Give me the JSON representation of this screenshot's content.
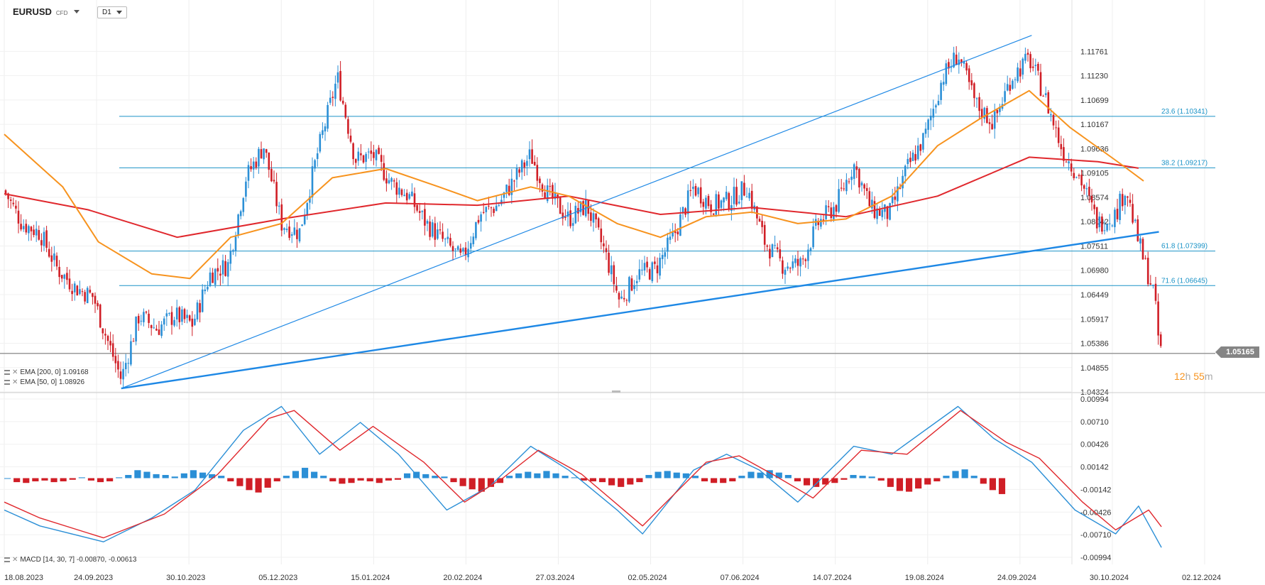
{
  "header": {
    "symbol": "EURUSD",
    "instrument_type": "CFD",
    "timeframe": "D1"
  },
  "indicators": {
    "ema200_label": "EMA [200, 0] 1.09168",
    "ema50_label": "EMA [50, 0] 1.08926",
    "macd_label": "MACD [14, 30, 7] -0.00870, -0.00613"
  },
  "last_price": "1.05165",
  "timer": {
    "hours": "12",
    "h_unit": "h",
    "minutes": "55",
    "m_unit": "m"
  },
  "colors": {
    "bull": "#2b8fd6",
    "bear": "#d01e26",
    "ema200": "#e0282d",
    "ema50": "#f7931e",
    "fib": "#1b93c7",
    "trend": "#1e88e5",
    "macd_line": "#2b8fd6",
    "signal_line": "#e0282d"
  },
  "chart_data": [
    {
      "type": "candlestick",
      "title": "EURUSD D1",
      "ylim": [
        1.04324,
        1.12293
      ],
      "y_ticks": [
        "1.11761",
        "1.11230",
        "1.10699",
        "1.10167",
        "1.09636",
        "1.09105",
        "1.08574",
        "1.08042",
        "1.07511",
        "1.06980",
        "1.06449",
        "1.05917",
        "1.05386",
        "1.04855",
        "1.04324"
      ],
      "x_ticks": [
        "18.08.2023",
        "24.09.2023",
        "30.10.2023",
        "05.12.2023",
        "15.01.2024",
        "20.02.2024",
        "27.03.2024",
        "02.05.2024",
        "07.06.2024",
        "14.07.2024",
        "19.08.2024",
        "24.09.2024",
        "30.10.2024",
        "02.12.2024"
      ],
      "close_path": [
        [
          "2023-08-18",
          1.0872
        ],
        [
          "2023-08-25",
          1.08
        ],
        [
          "2023-09-01",
          1.078
        ],
        [
          "2023-09-08",
          1.07
        ],
        [
          "2023-09-15",
          1.066
        ],
        [
          "2023-09-22",
          1.064
        ],
        [
          "2023-09-26",
          1.057
        ],
        [
          "2023-10-03",
          1.046
        ],
        [
          "2023-10-10",
          1.06
        ],
        [
          "2023-10-17",
          1.057
        ],
        [
          "2023-10-24",
          1.06
        ],
        [
          "2023-10-31",
          1.058
        ],
        [
          "2023-11-07",
          1.069
        ],
        [
          "2023-11-14",
          1.071
        ],
        [
          "2023-11-21",
          1.09
        ],
        [
          "2023-11-28",
          1.097
        ],
        [
          "2023-12-05",
          1.08
        ],
        [
          "2023-12-12",
          1.078
        ],
        [
          "2023-12-19",
          1.095
        ],
        [
          "2023-12-27",
          1.112
        ],
        [
          "2024-01-03",
          1.094
        ],
        [
          "2024-01-10",
          1.095
        ],
        [
          "2024-01-17",
          1.089
        ],
        [
          "2024-01-24",
          1.086
        ],
        [
          "2024-01-31",
          1.08
        ],
        [
          "2024-02-07",
          1.076
        ],
        [
          "2024-02-14",
          1.072
        ],
        [
          "2024-02-21",
          1.082
        ],
        [
          "2024-02-28",
          1.084
        ],
        [
          "2024-03-06",
          1.09
        ],
        [
          "2024-03-12",
          1.095
        ],
        [
          "2024-03-18",
          1.087
        ],
        [
          "2024-03-27",
          1.081
        ],
        [
          "2024-04-03",
          1.084
        ],
        [
          "2024-04-10",
          1.074
        ],
        [
          "2024-04-16",
          1.063
        ],
        [
          "2024-04-23",
          1.069
        ],
        [
          "2024-04-30",
          1.07
        ],
        [
          "2024-05-07",
          1.077
        ],
        [
          "2024-05-15",
          1.088
        ],
        [
          "2024-05-22",
          1.084
        ],
        [
          "2024-05-29",
          1.085
        ],
        [
          "2024-06-05",
          1.088
        ],
        [
          "2024-06-12",
          1.076
        ],
        [
          "2024-06-19",
          1.071
        ],
        [
          "2024-06-26",
          1.071
        ],
        [
          "2024-07-03",
          1.08
        ],
        [
          "2024-07-10",
          1.084
        ],
        [
          "2024-07-17",
          1.093
        ],
        [
          "2024-07-24",
          1.083
        ],
        [
          "2024-07-31",
          1.082
        ],
        [
          "2024-08-07",
          1.092
        ],
        [
          "2024-08-14",
          1.099
        ],
        [
          "2024-08-21",
          1.112
        ],
        [
          "2024-08-27",
          1.117
        ],
        [
          "2024-09-03",
          1.106
        ],
        [
          "2024-09-10",
          1.102
        ],
        [
          "2024-09-17",
          1.112
        ],
        [
          "2024-09-24",
          1.116
        ],
        [
          "2024-09-30",
          1.108
        ],
        [
          "2024-10-07",
          1.096
        ],
        [
          "2024-10-14",
          1.09
        ],
        [
          "2024-10-21",
          1.08
        ],
        [
          "2024-10-28",
          1.082
        ],
        [
          "2024-11-01",
          1.088
        ],
        [
          "2024-11-05",
          1.078
        ],
        [
          "2024-11-08",
          1.072
        ],
        [
          "2024-11-12",
          1.065
        ],
        [
          "2024-11-14",
          1.054
        ],
        [
          "2024-11-15",
          1.0517
        ]
      ],
      "ema200_path": [
        [
          "2023-08-18",
          1.0865
        ],
        [
          "2023-09-20",
          1.083
        ],
        [
          "2023-10-25",
          1.077
        ],
        [
          "2023-12-05",
          1.081
        ],
        [
          "2024-01-15",
          1.0845
        ],
        [
          "2024-02-20",
          1.084
        ],
        [
          "2024-03-27",
          1.086
        ],
        [
          "2024-05-02",
          1.082
        ],
        [
          "2024-06-07",
          1.0835
        ],
        [
          "2024-07-14",
          1.0815
        ],
        [
          "2024-08-19",
          1.086
        ],
        [
          "2024-09-24",
          1.0945
        ],
        [
          "2024-10-21",
          1.0935
        ],
        [
          "2024-11-06",
          1.0921
        ]
      ],
      "ema50_path": [
        [
          "2023-08-18",
          1.0995
        ],
        [
          "2023-09-10",
          1.088
        ],
        [
          "2023-09-24",
          1.076
        ],
        [
          "2023-10-15",
          1.069
        ],
        [
          "2023-10-30",
          1.068
        ],
        [
          "2023-11-15",
          1.077
        ],
        [
          "2023-12-05",
          1.08
        ],
        [
          "2023-12-25",
          1.09
        ],
        [
          "2024-01-15",
          1.092
        ],
        [
          "2024-02-05",
          1.088
        ],
        [
          "2024-02-20",
          1.085
        ],
        [
          "2024-03-12",
          1.088
        ],
        [
          "2024-03-27",
          1.086
        ],
        [
          "2024-04-15",
          1.08
        ],
        [
          "2024-05-02",
          1.077
        ],
        [
          "2024-05-20",
          1.0815
        ],
        [
          "2024-06-07",
          1.0825
        ],
        [
          "2024-06-25",
          1.08
        ],
        [
          "2024-07-14",
          1.081
        ],
        [
          "2024-08-01",
          1.086
        ],
        [
          "2024-08-19",
          1.097
        ],
        [
          "2024-09-05",
          1.103
        ],
        [
          "2024-09-24",
          1.109
        ],
        [
          "2024-10-10",
          1.101
        ],
        [
          "2024-10-30",
          1.093
        ],
        [
          "2024-11-08",
          1.0893
        ]
      ],
      "fibonacci": [
        {
          "label": "23.6 (1.10341)",
          "value": 1.10341
        },
        {
          "label": "38.2 (1.09217)",
          "value": 1.09217
        },
        {
          "label": "61.8 (1.07399)",
          "value": 1.07399
        },
        {
          "label": "71.6 (1.06645)",
          "value": 1.06645
        }
      ],
      "trendlines": [
        {
          "from": [
            "2023-10-03",
            1.044
          ],
          "to": [
            "2024-09-25",
            1.1211
          ]
        },
        {
          "from": [
            "2023-10-03",
            1.044
          ],
          "to": [
            "2024-11-14",
            1.0782
          ]
        }
      ],
      "last": 1.05165
    },
    {
      "type": "macd",
      "ylim": [
        -0.00994,
        0.00994
      ],
      "y_ticks": [
        "0.00994",
        "0.00710",
        "0.00426",
        "0.00142",
        "-0.00142",
        "-0.00426",
        "-0.00710",
        "-0.00994"
      ],
      "macd_path": [
        [
          "2023-08-18",
          -0.004
        ],
        [
          "2023-09-01",
          -0.006
        ],
        [
          "2023-09-26",
          -0.008
        ],
        [
          "2023-10-15",
          -0.005
        ],
        [
          "2023-11-01",
          -0.0015
        ],
        [
          "2023-11-20",
          0.006
        ],
        [
          "2023-12-05",
          0.009
        ],
        [
          "2023-12-20",
          0.003
        ],
        [
          "2024-01-05",
          0.007
        ],
        [
          "2024-01-20",
          0.003
        ],
        [
          "2024-02-08",
          -0.004
        ],
        [
          "2024-02-25",
          -0.001
        ],
        [
          "2024-03-12",
          0.004
        ],
        [
          "2024-03-27",
          0.001
        ],
        [
          "2024-04-15",
          -0.004
        ],
        [
          "2024-04-25",
          -0.007
        ],
        [
          "2024-05-15",
          0.001
        ],
        [
          "2024-05-28",
          0.003
        ],
        [
          "2024-06-10",
          0.001
        ],
        [
          "2024-06-25",
          -0.003
        ],
        [
          "2024-07-17",
          0.004
        ],
        [
          "2024-08-01",
          0.003
        ],
        [
          "2024-08-27",
          0.009
        ],
        [
          "2024-09-10",
          0.005
        ],
        [
          "2024-09-25",
          0.002
        ],
        [
          "2024-10-12",
          -0.004
        ],
        [
          "2024-10-28",
          -0.007
        ],
        [
          "2024-11-06",
          -0.0035
        ],
        [
          "2024-11-15",
          -0.0087
        ]
      ],
      "signal_path": [
        [
          "2023-08-18",
          -0.003
        ],
        [
          "2023-09-01",
          -0.005
        ],
        [
          "2023-09-26",
          -0.0075
        ],
        [
          "2023-10-20",
          -0.0045
        ],
        [
          "2023-11-10",
          0.0005
        ],
        [
          "2023-11-30",
          0.0075
        ],
        [
          "2023-12-10",
          0.0085
        ],
        [
          "2023-12-28",
          0.0035
        ],
        [
          "2024-01-10",
          0.0065
        ],
        [
          "2024-01-30",
          0.002
        ],
        [
          "2024-02-15",
          -0.003
        ],
        [
          "2024-03-01",
          0.0
        ],
        [
          "2024-03-15",
          0.0035
        ],
        [
          "2024-04-01",
          0.0005
        ],
        [
          "2024-04-25",
          -0.006
        ],
        [
          "2024-05-20",
          0.002
        ],
        [
          "2024-06-02",
          0.0028
        ],
        [
          "2024-06-15",
          0.0005
        ],
        [
          "2024-07-01",
          -0.0025
        ],
        [
          "2024-07-20",
          0.0035
        ],
        [
          "2024-08-07",
          0.003
        ],
        [
          "2024-08-28",
          0.0085
        ],
        [
          "2024-09-15",
          0.0045
        ],
        [
          "2024-09-28",
          0.0025
        ],
        [
          "2024-10-15",
          -0.003
        ],
        [
          "2024-10-28",
          -0.0065
        ],
        [
          "2024-11-10",
          -0.004
        ],
        [
          "2024-11-15",
          -0.0061
        ]
      ],
      "histogram": [
        0,
        -0.0005,
        -0.0006,
        -0.0004,
        -0.0003,
        -0.0005,
        -0.0004,
        -0.0002,
        0.0001,
        -0.0003,
        -0.0005,
        -0.0004,
        0.0001,
        0.0004,
        0.001,
        0.0008,
        0.0005,
        0.0004,
        0.0002,
        0.0006,
        0.001,
        0.0007,
        0.0005,
        0.0003,
        -0.0004,
        -0.001,
        -0.0015,
        -0.0018,
        -0.0012,
        -0.0004,
        0.0003,
        0.0009,
        0.0013,
        0.0008,
        0.0003,
        -0.0004,
        -0.0007,
        -0.0006,
        -0.0003,
        -0.0004,
        -0.0006,
        -0.0003,
        -0.0002,
        0.0006,
        0.0008,
        0.0005,
        0.0003,
        0.0002,
        -0.0005,
        -0.001,
        -0.0014,
        -0.0017,
        -0.0011,
        -0.0006,
        0.0003,
        0.0006,
        0.0008,
        0.0006,
        0.0009,
        0.0006,
        0.0003,
        0.0001,
        -0.0003,
        -0.0004,
        -0.0005,
        -0.0009,
        -0.0011,
        -0.0008,
        -0.0005,
        0.0004,
        0.0008,
        0.0009,
        0.0007,
        0.0006,
        0.0003,
        -0.0004,
        -0.0006,
        -0.0006,
        -0.0004,
        0.0003,
        0.0008,
        0.0007,
        0.001,
        0.0007,
        0.0004,
        -0.0004,
        -0.0009,
        -0.0011,
        -0.0008,
        -0.0006,
        -0.0002,
        0.0004,
        0.0003,
        0.0002,
        -0.0003,
        -0.0011,
        -0.0016,
        -0.0017,
        -0.0013,
        -0.0008,
        -0.0004,
        0.0003,
        0.0009,
        0.0011,
        0.0003,
        -0.0007,
        -0.0015,
        -0.002
      ]
    }
  ]
}
